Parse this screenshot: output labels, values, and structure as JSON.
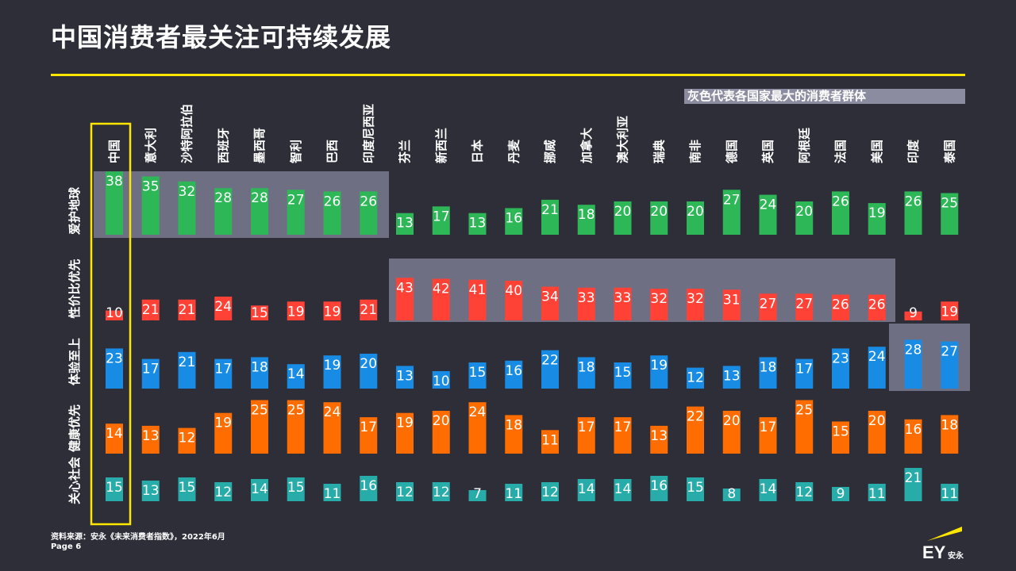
{
  "title": "中国消费者最关注可持续发展",
  "legend_note": "灰色代表各国家最大的消费者群体",
  "source": "资料来源：安永《未来消费者指数》，2022年6月",
  "page": "Page 6",
  "logo_text": "EY安永",
  "colors": {
    "background": "#2e2e38",
    "accent": "#ffe600",
    "highlight": "#75758b",
    "series": [
      "#2db757",
      "#ff4136",
      "#188ce5",
      "#ff6d00",
      "#27acaa"
    ]
  },
  "chart_data": {
    "type": "bar",
    "categories": [
      "中国",
      "意大利",
      "沙特阿拉伯",
      "西班牙",
      "墨西哥",
      "智利",
      "巴西",
      "印度尼西亚",
      "芬兰",
      "新西兰",
      "日本",
      "丹麦",
      "挪威",
      "加拿大",
      "澳大利亚",
      "瑞典",
      "南非",
      "德国",
      "英国",
      "阿根廷",
      "法国",
      "美国",
      "印度",
      "泰国"
    ],
    "series": [
      {
        "name": "爱护地球",
        "values": [
          38,
          35,
          32,
          28,
          28,
          27,
          26,
          26,
          13,
          17,
          13,
          16,
          21,
          18,
          20,
          20,
          20,
          27,
          24,
          20,
          26,
          19,
          26,
          25
        ]
      },
      {
        "name": "性价比优先",
        "values": [
          10,
          21,
          21,
          24,
          15,
          19,
          19,
          21,
          43,
          42,
          41,
          40,
          34,
          33,
          33,
          32,
          32,
          31,
          27,
          27,
          26,
          26,
          9,
          19
        ]
      },
      {
        "name": "体验至上",
        "values": [
          23,
          17,
          21,
          17,
          18,
          14,
          19,
          20,
          13,
          10,
          15,
          16,
          22,
          18,
          15,
          19,
          12,
          13,
          18,
          17,
          23,
          24,
          28,
          27
        ]
      },
      {
        "name": "健康优先",
        "values": [
          14,
          13,
          12,
          19,
          25,
          25,
          24,
          17,
          19,
          20,
          24,
          18,
          11,
          17,
          17,
          13,
          22,
          20,
          17,
          25,
          15,
          20,
          16,
          18
        ]
      },
      {
        "name": "关心社会",
        "values": [
          15,
          13,
          15,
          12,
          14,
          15,
          11,
          16,
          12,
          12,
          7,
          11,
          12,
          14,
          14,
          16,
          15,
          8,
          14,
          12,
          9,
          11,
          21,
          11
        ]
      }
    ],
    "largest_group_highlight": [
      {
        "series": "爱护地球",
        "categories": [
          "中国",
          "意大利",
          "沙特阿拉伯",
          "西班牙",
          "墨西哥",
          "智利",
          "巴西",
          "印度尼西亚"
        ]
      },
      {
        "series": "性价比优先",
        "categories": [
          "芬兰",
          "新西兰",
          "日本",
          "丹麦",
          "挪威",
          "加拿大",
          "澳大利亚",
          "瑞典",
          "南非",
          "德国",
          "英国",
          "阿根廷",
          "法国",
          "美国"
        ]
      },
      {
        "series": "体验至上",
        "categories": [
          "印度",
          "泰国"
        ]
      }
    ],
    "focus_category": "中国"
  }
}
